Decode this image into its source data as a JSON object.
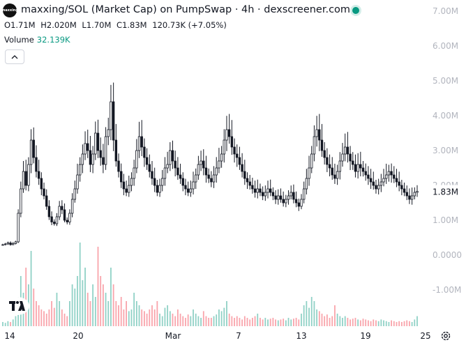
{
  "header": {
    "logo_text": "maxxing",
    "title": "maxxing/SOL (Market Cap) on PumpSwap · 4h · dexscreener.com",
    "ohlc": [
      {
        "k": "O",
        "v": "1.71M"
      },
      {
        "k": "H",
        "v": "2.020M"
      },
      {
        "k": "L",
        "v": "1.70M"
      },
      {
        "k": "C",
        "v": "1.83M"
      },
      {
        "k": "",
        "v": "120.73K (+7.05%)"
      }
    ],
    "volume_label": "Volume",
    "volume_value": "32.139K"
  },
  "icons": {
    "collapse": "chevron-up-icon",
    "logo": "tradingview-logo",
    "settings": "gear-icon"
  },
  "colors": {
    "up": "#089981",
    "down": "#f23645",
    "candle_body": "#131722",
    "vol_up": "#089981",
    "vol_down": "#f23645"
  },
  "chart_data": {
    "type": "candlestick",
    "title": "maxxing/SOL (Market Cap) on PumpSwap · 4h · dexscreener.com",
    "y_axis_ticks": [
      "7.00M",
      "6.00M",
      "5.00M",
      "4.00M",
      "3.00M",
      "2.00M",
      "1.00M",
      "0.0000",
      "-1.00M"
    ],
    "ylim": [
      -1.5,
      7.2
    ],
    "x_axis_ticks": [
      "14",
      "20",
      "Mar",
      "7",
      "13",
      "19",
      "25"
    ],
    "last_price_label": "1.83M",
    "last_price": 1.83,
    "close_series_millions": [
      0.3,
      0.32,
      0.35,
      0.3,
      0.33,
      0.38,
      1.2,
      1.9,
      2.4,
      2.0,
      2.6,
      3.3,
      2.8,
      2.4,
      2.2,
      1.9,
      1.7,
      1.4,
      1.1,
      0.95,
      0.9,
      1.1,
      1.4,
      1.3,
      1.0,
      0.95,
      1.2,
      1.6,
      1.9,
      2.3,
      2.6,
      2.9,
      3.2,
      3.0,
      2.6,
      2.9,
      3.5,
      3.0,
      2.8,
      2.6,
      3.4,
      3.6,
      4.4,
      3.3,
      2.7,
      2.4,
      2.1,
      1.9,
      1.8,
      2.0,
      2.2,
      2.5,
      3.0,
      3.4,
      3.1,
      2.8,
      2.6,
      2.4,
      2.2,
      2.0,
      1.8,
      2.0,
      2.2,
      2.5,
      2.6,
      3.0,
      2.7,
      2.5,
      2.3,
      2.2,
      2.0,
      1.9,
      1.8,
      1.9,
      2.1,
      2.3,
      2.6,
      2.7,
      2.5,
      2.3,
      2.2,
      2.1,
      2.3,
      2.5,
      2.7,
      2.9,
      3.3,
      3.6,
      3.4,
      3.1,
      2.9,
      2.8,
      2.6,
      2.4,
      2.2,
      2.1,
      2.0,
      1.9,
      1.8,
      1.9,
      1.8,
      1.7,
      1.8,
      1.9,
      1.8,
      1.7,
      1.6,
      1.7,
      1.6,
      1.5,
      1.6,
      1.7,
      1.8,
      1.6,
      1.5,
      1.4,
      1.6,
      1.9,
      2.2,
      2.5,
      2.9,
      3.4,
      3.6,
      3.3,
      3.0,
      2.8,
      2.6,
      2.5,
      2.3,
      2.2,
      2.4,
      2.7,
      2.9,
      3.1,
      2.9,
      2.7,
      2.6,
      2.4,
      2.6,
      2.5,
      2.4,
      2.3,
      2.2,
      2.1,
      2.0,
      1.9,
      2.0,
      2.1,
      2.2,
      2.3,
      2.4,
      2.3,
      2.2,
      2.1,
      2.0,
      1.9,
      1.8,
      1.7,
      1.6,
      1.7,
      1.8,
      1.83
    ],
    "volume_series_relative": [
      0.05,
      0.04,
      0.06,
      0.05,
      0.08,
      0.12,
      0.35,
      0.6,
      0.4,
      0.7,
      0.5,
      0.9,
      0.45,
      0.3,
      0.25,
      0.2,
      0.18,
      0.15,
      0.2,
      0.3,
      0.22,
      0.4,
      0.3,
      0.2,
      0.15,
      0.12,
      0.3,
      0.5,
      0.45,
      0.6,
      1.0,
      0.55,
      0.7,
      0.4,
      0.3,
      0.5,
      0.35,
      0.95,
      0.6,
      0.5,
      0.4,
      0.3,
      0.7,
      0.5,
      0.3,
      0.25,
      0.35,
      0.2,
      0.3,
      0.18,
      0.2,
      0.4,
      0.3,
      0.25,
      0.2,
      0.18,
      0.15,
      0.2,
      0.25,
      0.2,
      0.3,
      0.15,
      0.12,
      0.22,
      0.25,
      0.18,
      0.15,
      0.12,
      0.2,
      0.15,
      0.12,
      0.1,
      0.14,
      0.12,
      0.2,
      0.15,
      0.12,
      0.1,
      0.18,
      0.12,
      0.1,
      0.1,
      0.12,
      0.14,
      0.2,
      0.18,
      0.22,
      0.3,
      0.15,
      0.12,
      0.1,
      0.12,
      0.1,
      0.08,
      0.12,
      0.1,
      0.08,
      0.1,
      0.12,
      0.15,
      0.1,
      0.08,
      0.1,
      0.08,
      0.09,
      0.1,
      0.08,
      0.07,
      0.08,
      0.09,
      0.07,
      0.1,
      0.08,
      0.09,
      0.1,
      0.08,
      0.15,
      0.25,
      0.3,
      0.22,
      0.35,
      0.3,
      0.2,
      0.18,
      0.15,
      0.12,
      0.14,
      0.1,
      0.12,
      0.25,
      0.15,
      0.12,
      0.1,
      0.12,
      0.1,
      0.08,
      0.09,
      0.1,
      0.08,
      0.07,
      0.09,
      0.08,
      0.07,
      0.06,
      0.08,
      0.07,
      0.06,
      0.08,
      0.07,
      0.06,
      0.05,
      0.07,
      0.06,
      0.05,
      0.06,
      0.05,
      0.06,
      0.07,
      0.06,
      0.05,
      0.08,
      0.12
    ]
  }
}
